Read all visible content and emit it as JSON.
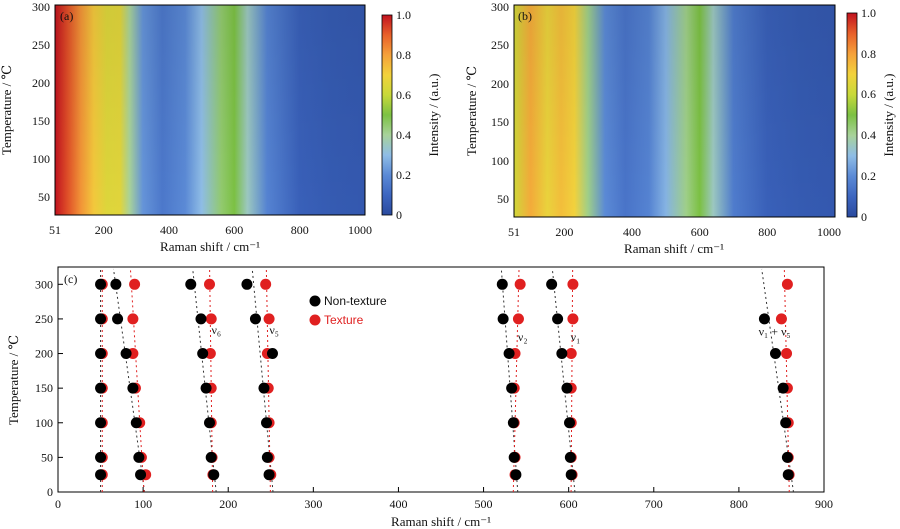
{
  "colorscale": [
    "#2a4a9e",
    "#3d66c0",
    "#5b8ad6",
    "#8fbde6",
    "#a8d29a",
    "#7cc143",
    "#c8d93a",
    "#f2d23c",
    "#f5a13a",
    "#e8602a",
    "#c1121f"
  ],
  "chart_data": [
    {
      "type": "heatmap",
      "panel_label": "(a)",
      "xlabel": "Raman shift / cm⁻¹",
      "ylabel": "Temperature / ℃",
      "xlim": [
        51,
        1000
      ],
      "ylim": [
        25,
        300
      ],
      "x_ticks": [
        "51",
        "200",
        "400",
        "600",
        "800",
        "1000"
      ],
      "y_ticks": [
        "50",
        "100",
        "150",
        "200",
        "250",
        "300"
      ],
      "colorbar": {
        "label": "Intensity / (a.u.)",
        "ticks": [
          "0",
          "0.2",
          "0.4",
          "0.6",
          "0.8",
          "1.0"
        ]
      },
      "intensity_profile": {
        "shift": [
          51,
          90,
          130,
          170,
          210,
          250,
          280,
          320,
          380,
          450,
          500,
          560,
          600,
          640,
          700,
          800,
          900,
          1000
        ],
        "intensity": [
          1.0,
          0.92,
          0.82,
          0.72,
          0.65,
          0.66,
          0.4,
          0.22,
          0.15,
          0.2,
          0.3,
          0.45,
          0.5,
          0.35,
          0.18,
          0.08,
          0.06,
          0.05
        ]
      }
    },
    {
      "type": "heatmap",
      "panel_label": "(b)",
      "xlabel": "Raman shift / cm⁻¹",
      "ylabel": "Temperature / ℃",
      "xlim": [
        51,
        1000
      ],
      "ylim": [
        25,
        300
      ],
      "x_ticks": [
        "51",
        "200",
        "400",
        "600",
        "800",
        "1000"
      ],
      "y_ticks": [
        "50",
        "100",
        "150",
        "200",
        "250",
        "300"
      ],
      "colorbar": {
        "label": "Intensity / (a.u.)",
        "ticks": [
          "0",
          "0.2",
          "0.4",
          "0.6",
          "0.8",
          "1.0"
        ]
      },
      "intensity_profile": {
        "shift": [
          51,
          100,
          150,
          190,
          230,
          270,
          320,
          380,
          450,
          500,
          560,
          600,
          640,
          700,
          800,
          900,
          1000
        ],
        "intensity": [
          0.62,
          0.78,
          0.68,
          0.74,
          0.7,
          0.42,
          0.2,
          0.14,
          0.18,
          0.28,
          0.42,
          0.5,
          0.35,
          0.16,
          0.08,
          0.06,
          0.05
        ]
      }
    },
    {
      "type": "scatter",
      "panel_label": "(c)",
      "xlabel": "Raman shift / cm⁻¹",
      "ylabel": "Temperature / ℃",
      "xlim": [
        0,
        900
      ],
      "ylim": [
        0,
        325
      ],
      "x_ticks": [
        0,
        100,
        200,
        300,
        400,
        500,
        600,
        700,
        800,
        900
      ],
      "y_ticks": [
        0,
        50,
        100,
        150,
        200,
        250,
        300
      ],
      "y": [
        25,
        50,
        100,
        150,
        200,
        250,
        300
      ],
      "series": [
        {
          "name": "Non-texture",
          "color": "#000000",
          "branches": [
            [
              50,
              50,
              50,
              50,
              50,
              50,
              50
            ],
            [
              97,
              95,
              92,
              88,
              80,
              70,
              68
            ],
            [
              183,
              180,
              178,
              174,
              170,
              168,
              156
            ],
            [
              248,
              246,
              245,
              242,
              252,
              232,
              222
            ],
            [
              538,
              536,
              535,
              533,
              530,
              523,
              522
            ],
            [
              603,
              602,
              601,
              598,
              592,
              587,
              580
            ],
            [
              858,
              857,
              855,
              852,
              843,
              830,
              null
            ]
          ]
        },
        {
          "name": "Texture",
          "color": "#e02020",
          "branches": [
            [
              52,
              52,
              52,
              52,
              52,
              52,
              52
            ],
            [
              103,
              98,
              96,
              91,
              88,
              88,
              90
            ],
            [
              182,
              181,
              180,
              180,
              179,
              180,
              178
            ],
            [
              250,
              248,
              248,
              247,
              246,
              248,
              244
            ],
            [
              537,
              537,
              536,
              536,
              537,
              541,
              543
            ],
            [
              604,
              603,
              603,
              603,
              603,
              605,
              605
            ],
            [
              859,
              858,
              858,
              857,
              856,
              850,
              857
            ]
          ]
        }
      ],
      "annotations": [
        {
          "text": "ν₆",
          "x": 186,
          "y": 228
        },
        {
          "text": "ν₅",
          "x": 254,
          "y": 228
        },
        {
          "text": "ν₂",
          "x": 546,
          "y": 218
        },
        {
          "text": "ν₁",
          "x": 608,
          "y": 218
        },
        {
          "text": "ν₁ + ν₅",
          "x": 842,
          "y": 226
        }
      ]
    }
  ]
}
